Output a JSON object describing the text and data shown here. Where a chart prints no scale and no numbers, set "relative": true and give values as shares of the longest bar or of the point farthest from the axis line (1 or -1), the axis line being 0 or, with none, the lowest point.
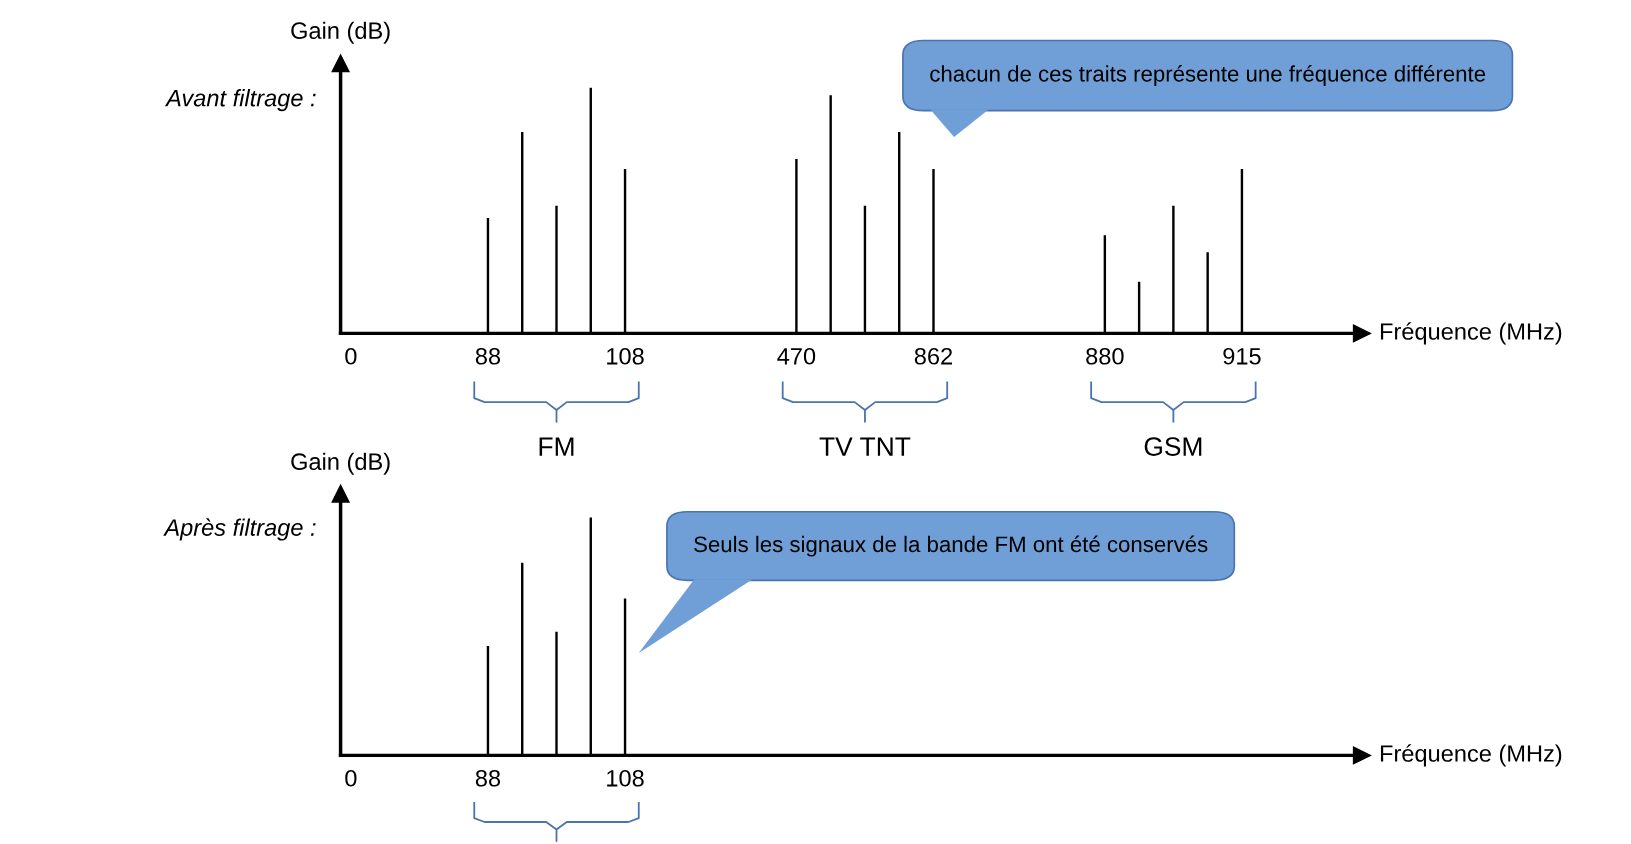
{
  "chart_data": [
    {
      "type": "bar",
      "title": "Avant filtrage :",
      "ylabel": "Gain (dB)",
      "xlabel": "Fréquence (MHz)",
      "relative": true,
      "color": "#000000",
      "grid": false,
      "legend": false,
      "categories": [
        "0",
        null,
        null,
        null,
        "88",
        null,
        null,
        null,
        "108",
        null,
        null,
        null,
        null,
        "470",
        null,
        null,
        null,
        "862",
        null,
        null,
        null,
        null,
        "880",
        null,
        null,
        null,
        "915",
        null,
        null,
        null
      ],
      "values": [
        null,
        null,
        null,
        null,
        0.47,
        0.82,
        0.52,
        1,
        0.67,
        null,
        null,
        null,
        null,
        0.71,
        0.97,
        0.52,
        0.82,
        0.67,
        null,
        null,
        null,
        null,
        0.4,
        0.21,
        0.52,
        0.33,
        0.67,
        null,
        null,
        null
      ],
      "annotations": [
        "FM",
        "TV TNT",
        "GSM",
        "chacun de ces traits représente une fréquence différente"
      ]
    },
    {
      "type": "bar",
      "title": "Après filtrage :",
      "ylabel": "Gain (dB)",
      "xlabel": "Fréquence (MHz)",
      "relative": true,
      "color": "#000000",
      "grid": false,
      "legend": false,
      "categories": [
        "0",
        null,
        null,
        null,
        "88",
        null,
        null,
        null,
        "108",
        null,
        null,
        null,
        null,
        null,
        null,
        null,
        null,
        null,
        null,
        null,
        null,
        null,
        null,
        null,
        null,
        null,
        null,
        null,
        null,
        null
      ],
      "values": [
        null,
        null,
        null,
        null,
        0.46,
        0.81,
        0.52,
        1,
        0.66,
        null,
        null,
        null,
        null,
        null,
        null,
        null,
        null,
        null,
        null,
        null,
        null,
        null,
        null,
        null,
        null,
        null,
        null,
        null,
        null,
        null
      ],
      "annotations": [
        "Seuls les signaux de la bande FM ont été conservés"
      ]
    }
  ]
}
